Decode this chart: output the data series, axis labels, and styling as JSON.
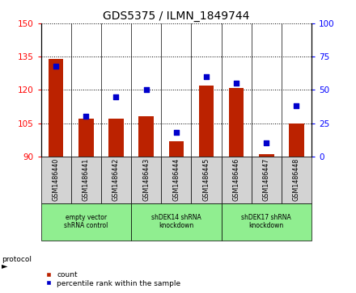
{
  "title": "GDS5375 / ILMN_1849744",
  "samples": [
    "GSM1486440",
    "GSM1486441",
    "GSM1486442",
    "GSM1486443",
    "GSM1486444",
    "GSM1486445",
    "GSM1486446",
    "GSM1486447",
    "GSM1486448"
  ],
  "count_values": [
    134,
    107,
    107,
    108,
    97,
    122,
    121,
    91,
    105
  ],
  "percentile_values": [
    68,
    30,
    45,
    50,
    18,
    60,
    55,
    10,
    38
  ],
  "ylim_left": [
    90,
    150
  ],
  "ylim_right": [
    0,
    100
  ],
  "yticks_left": [
    90,
    105,
    120,
    135,
    150
  ],
  "yticks_right": [
    0,
    25,
    50,
    75,
    100
  ],
  "bar_color": "#bb2200",
  "dot_color": "#0000cc",
  "grid_color": "#000000",
  "protocol_groups": [
    {
      "label": "empty vector\nshRNA control",
      "start": 0,
      "end": 3,
      "color": "#90ee90"
    },
    {
      "label": "shDEK14 shRNA\nknockdown",
      "start": 3,
      "end": 6,
      "color": "#90ee90"
    },
    {
      "label": "shDEK17 shRNA\nknockdown",
      "start": 6,
      "end": 9,
      "color": "#90ee90"
    }
  ],
  "legend_count_label": "count",
  "legend_percentile_label": "percentile rank within the sample",
  "tick_bg_color": "#d3d3d3",
  "title_fontsize": 10,
  "tick_fontsize": 7.5
}
